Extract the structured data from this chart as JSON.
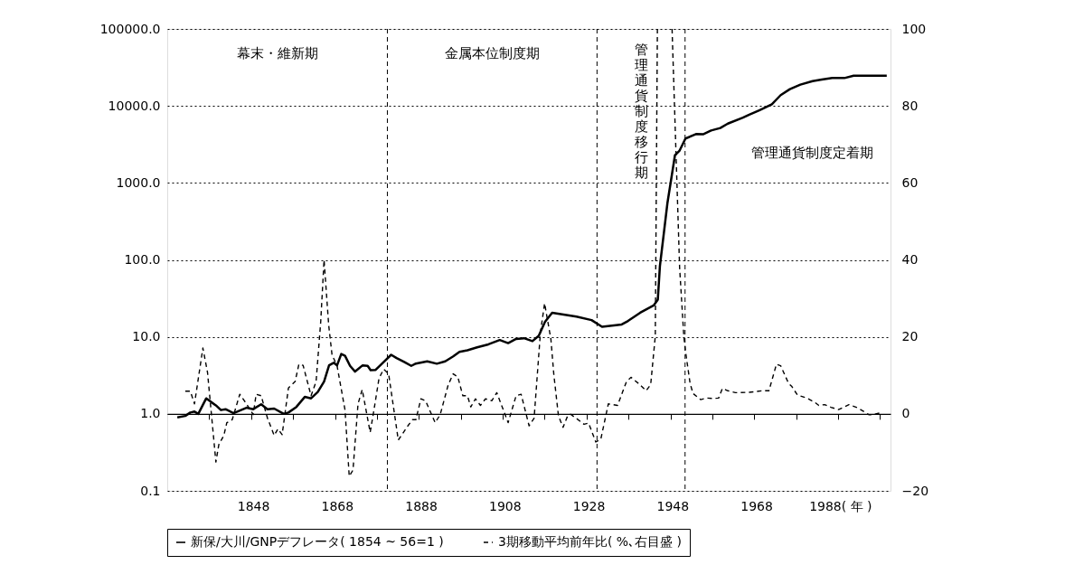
{
  "chart_data": {
    "type": "line",
    "xlim": [
      1827.5,
      2000
    ],
    "xticks": [
      {
        "value": 1837.5,
        "label": null
      },
      1848,
      {
        "value": 1847.5,
        "label": null
      },
      {
        "value": 1857.5,
        "label": null
      },
      1868,
      {
        "value": 1867.5,
        "label": null
      },
      {
        "value": 1877.5,
        "label": null
      },
      1888,
      {
        "value": 1887.5,
        "label": null
      },
      {
        "value": 1897.5,
        "label": null
      },
      1908,
      {
        "value": 1907.5,
        "label": null
      },
      {
        "value": 1917.5,
        "label": null
      },
      1928,
      {
        "value": 1927.5,
        "label": null
      },
      {
        "value": 1937.5,
        "label": null
      },
      1948,
      {
        "value": 1947.5,
        "label": null
      },
      {
        "value": 1957.5,
        "label": null
      },
      1968,
      {
        "value": 1967.5,
        "label": null
      },
      {
        "value": 1977.5,
        "label": null
      },
      {
        "value": 1988,
        "label": "1988( 年 )"
      },
      {
        "value": 1987.5,
        "label": null
      },
      {
        "value": 1997.5,
        "label": null
      }
    ],
    "ylim": [
      0.1,
      100000
    ],
    "log": "y",
    "yticks": [
      {
        "value": 0.1,
        "label": "0.1"
      },
      {
        "value": 1,
        "label": "1.0"
      },
      {
        "value": 10,
        "label": "10.0"
      },
      {
        "value": 100,
        "label": "100.0"
      },
      {
        "value": 1000,
        "label": "1000.0"
      },
      {
        "value": 10000,
        "label": "10000.0"
      },
      {
        "value": 100000,
        "label": "100000.0"
      }
    ],
    "y2lim": [
      -20,
      100
    ],
    "y2ticks": [
      {
        "value": -20,
        "label": "−20"
      },
      0,
      20,
      40,
      60,
      80,
      100
    ],
    "grid": "y",
    "legend": "bottom",
    "series": [
      {
        "name": "新保/大川/GNPデフレータ( 1854 ~ 56=1 )",
        "color": "#000000",
        "line_style": "solid",
        "x": [
          1829.9,
          1831.8,
          1833,
          1834,
          1834.9,
          1836.8,
          1838,
          1839.1,
          1840.3,
          1841.4,
          1843.3,
          1846.4,
          1848,
          1849.9,
          1851.4,
          1853,
          1855.3,
          1856.4,
          1858.3,
          1860.3,
          1861.8,
          1863.4,
          1864.9,
          1866.1,
          1867.2,
          1868,
          1869,
          1869.9,
          1871.1,
          1872.3,
          1874.1,
          1875.3,
          1876,
          1877.2,
          1878.7,
          1880.9,
          1882.2,
          1884.1,
          1885.7,
          1886.8,
          1889.5,
          1891.8,
          1893.8,
          1895.7,
          1897.2,
          1899.1,
          1901.4,
          1904.1,
          1906.8,
          1908.8,
          1910.7,
          1912.6,
          1914.6,
          1916.1,
          1917.6,
          1919.3,
          1925.1,
          1928.7,
          1931.2,
          1935.9,
          1937.4,
          1940.3,
          1943.5,
          1944.5,
          1945,
          1946.8,
          1948.6,
          1949.7,
          1951.1,
          1953.6,
          1955.4,
          1957.2,
          1959.4,
          1961.2,
          1964.8,
          1966.3,
          1968.8,
          1971.7,
          1973.8,
          1976,
          1978.5,
          1981.4,
          1983.6,
          1986.1,
          1989,
          1991.2,
          1999.1
        ],
        "values": [
          0.9,
          0.94,
          1.04,
          1.07,
          1.0,
          1.59,
          1.42,
          1.29,
          1.12,
          1.15,
          1.02,
          1.2,
          1.15,
          1.33,
          1.15,
          1.17,
          1.0,
          1.04,
          1.23,
          1.66,
          1.59,
          1.92,
          2.62,
          4.27,
          4.61,
          4.27,
          6.0,
          5.67,
          4.2,
          3.54,
          4.27,
          4.2,
          3.7,
          3.73,
          4.48,
          5.85,
          5.3,
          4.7,
          4.2,
          4.5,
          4.8,
          4.48,
          4.8,
          5.57,
          6.4,
          6.7,
          7.3,
          8.0,
          9.1,
          8.3,
          9.4,
          9.6,
          8.8,
          10.3,
          15.7,
          20.6,
          18.3,
          16.5,
          13.5,
          14.5,
          16.1,
          20.6,
          25.6,
          30.5,
          83,
          550,
          2300,
          2630,
          3770,
          4310,
          4300,
          4790,
          5160,
          5890,
          7050,
          7710,
          8820,
          10500,
          13800,
          16500,
          18900,
          21000,
          22000,
          23000,
          23000,
          24700,
          24700
        ]
      },
      {
        "name": "3期移動平均前年比( %､右目盛 )",
        "color": "#000000",
        "line_style": "dashed",
        "axis": "y2",
        "x": [
          1831.8,
          1833,
          1834,
          1836,
          1837.1,
          1839.1,
          1839.8,
          1841,
          1841.7,
          1843,
          1844.8,
          1846.4,
          1848,
          1848.7,
          1849.9,
          1851.4,
          1853,
          1853.9,
          1854.9,
          1856.4,
          1858,
          1858.9,
          1859.9,
          1861.8,
          1863,
          1864.1,
          1864.9,
          1866,
          1866.8,
          1868,
          1869.9,
          1870.9,
          1871.8,
          1873,
          1874,
          1875.9,
          1876.8,
          1878,
          1879.1,
          1880.3,
          1882.6,
          1884.9,
          1886,
          1886.8,
          1888,
          1889.1,
          1891.4,
          1892.6,
          1894.5,
          1895.7,
          1896.8,
          1898,
          1899.1,
          1899.9,
          1901,
          1902.2,
          1903.4,
          1904.9,
          1906.1,
          1908.8,
          1910.7,
          1911.9,
          1913.8,
          1915,
          1916.5,
          1917.5,
          1919,
          1919.7,
          1920.8,
          1921.9,
          1923,
          1923.7,
          1925.1,
          1926.9,
          1928,
          1929.7,
          1930.9,
          1932.7,
          1934.9,
          1937,
          1938.1,
          1939.9,
          1941.7,
          1942.8,
          1943.9,
          1944.4,
          1946,
          1947.9,
          1949.7,
          1950.7,
          1951.1,
          1952.2,
          1952.9,
          1954.7,
          1956.2,
          1957.6,
          1959,
          1959.9,
          1961.2,
          1963,
          1966.3,
          1969.5,
          1971,
          1972.8,
          1973.8,
          1975.7,
          1976.4,
          1977.8,
          1980,
          1981.8,
          1982.9,
          1984.3,
          1985.8,
          1987.6,
          1990.1,
          1992.3,
          1994.8,
          1995.9,
          1997.7
        ],
        "values": [
          5.9,
          5.9,
          2.6,
          17.1,
          10.8,
          -12.5,
          -8.0,
          -5.6,
          -2.3,
          -1.5,
          5.1,
          2.6,
          -0.2,
          5.1,
          4.7,
          -1.1,
          -5.6,
          -3.9,
          -5.4,
          6.7,
          8.4,
          12.9,
          12.6,
          4.7,
          8.4,
          23.9,
          40,
          23.1,
          15.3,
          12.5,
          1.0,
          -16.2,
          -14.6,
          2.6,
          6.3,
          -4.8,
          1.0,
          9.2,
          11.6,
          10.4,
          -6.8,
          -3.1,
          -1.5,
          -1.5,
          3.9,
          3.4,
          -2.3,
          -0.2,
          7.5,
          10.4,
          9.6,
          4.7,
          4.7,
          1.8,
          3.9,
          2.2,
          3.9,
          3.4,
          5.5,
          -2.3,
          4.7,
          5.1,
          -3.1,
          -1.1,
          21.1,
          28.7,
          19.4,
          10.2,
          -0.5,
          -3.5,
          -0.5,
          -0.1,
          -1.2,
          -2.7,
          -2.4,
          -7.3,
          -6.6,
          2.6,
          2.2,
          8.3,
          9.5,
          7.9,
          6.0,
          7.6,
          20.2,
          100,
          null,
          100,
          38,
          20.2,
          16.3,
          7.9,
          5.3,
          3.7,
          4.1,
          4.0,
          4.1,
          6.6,
          6.0,
          5.5,
          5.6,
          6.0,
          6.0,
          12.9,
          12.5,
          7.9,
          7.2,
          4.9,
          4.1,
          3.1,
          2.2,
          2.4,
          1.7,
          1.1,
          2.4,
          1.5,
          -0.2,
          -0.2,
          0.3
        ]
      }
    ],
    "ref_lines": [
      {
        "axis": "x",
        "value": 1880,
        "label": null,
        "line_style": "dashed",
        "color": "#000000"
      },
      {
        "axis": "x",
        "value": 1930,
        "label": null,
        "line_style": "dashed",
        "color": "#000000"
      },
      {
        "axis": "x",
        "value": 1951,
        "label": null,
        "line_style": "dashed",
        "color": "#000000"
      }
    ],
    "annotations": [
      "幕末・維新期",
      "金属本位制度期",
      "管理通貨制度移行期",
      "管理通貨制度定着期"
    ]
  }
}
